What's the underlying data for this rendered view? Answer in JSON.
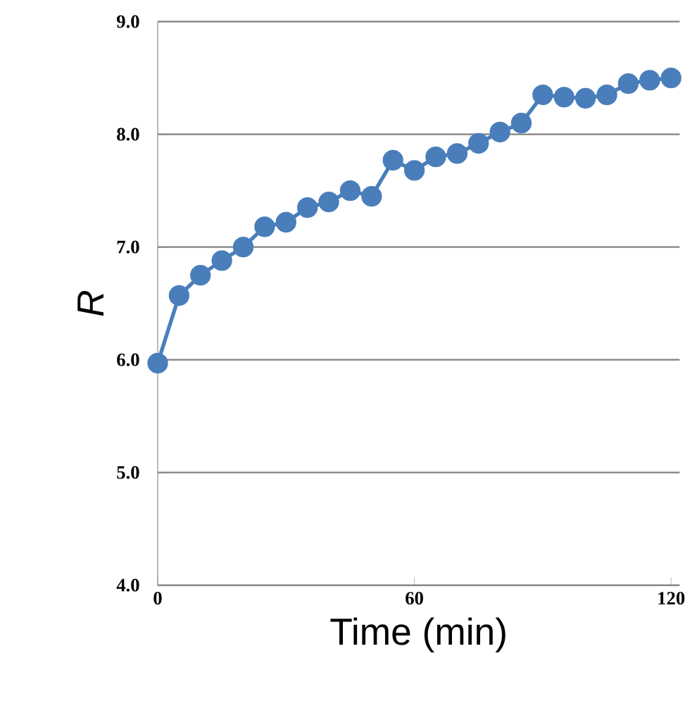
{
  "chart_data": {
    "type": "line",
    "xlabel": "Time (min)",
    "ylabel": "R",
    "x": [
      0,
      5,
      10,
      15,
      20,
      25,
      30,
      35,
      40,
      45,
      50,
      55,
      60,
      65,
      70,
      75,
      80,
      85,
      90,
      95,
      100,
      105,
      110,
      115,
      120
    ],
    "series": [
      {
        "color": "#4a7ebb",
        "values": [
          5.97,
          6.57,
          6.75,
          6.88,
          7.0,
          7.18,
          7.22,
          7.35,
          7.4,
          7.5,
          7.45,
          7.77,
          7.68,
          7.8,
          7.83,
          7.92,
          8.02,
          8.1,
          8.35,
          8.33,
          8.32,
          8.35,
          8.45,
          8.48,
          8.5
        ]
      }
    ],
    "xlim": [
      0,
      122
    ],
    "xticks": [
      0,
      60,
      120
    ],
    "ylim": [
      4.0,
      9.0
    ],
    "yticks": [
      {
        "value": 4,
        "label": "4.0"
      },
      {
        "value": 5,
        "label": "5.0"
      },
      {
        "value": 6,
        "label": "6.0"
      },
      {
        "value": 7,
        "label": "7.0"
      },
      {
        "value": 8,
        "label": "8.0"
      },
      {
        "value": 9,
        "label": "9.0"
      }
    ],
    "grid": "y",
    "marker": "circle",
    "line_style": "solid"
  }
}
